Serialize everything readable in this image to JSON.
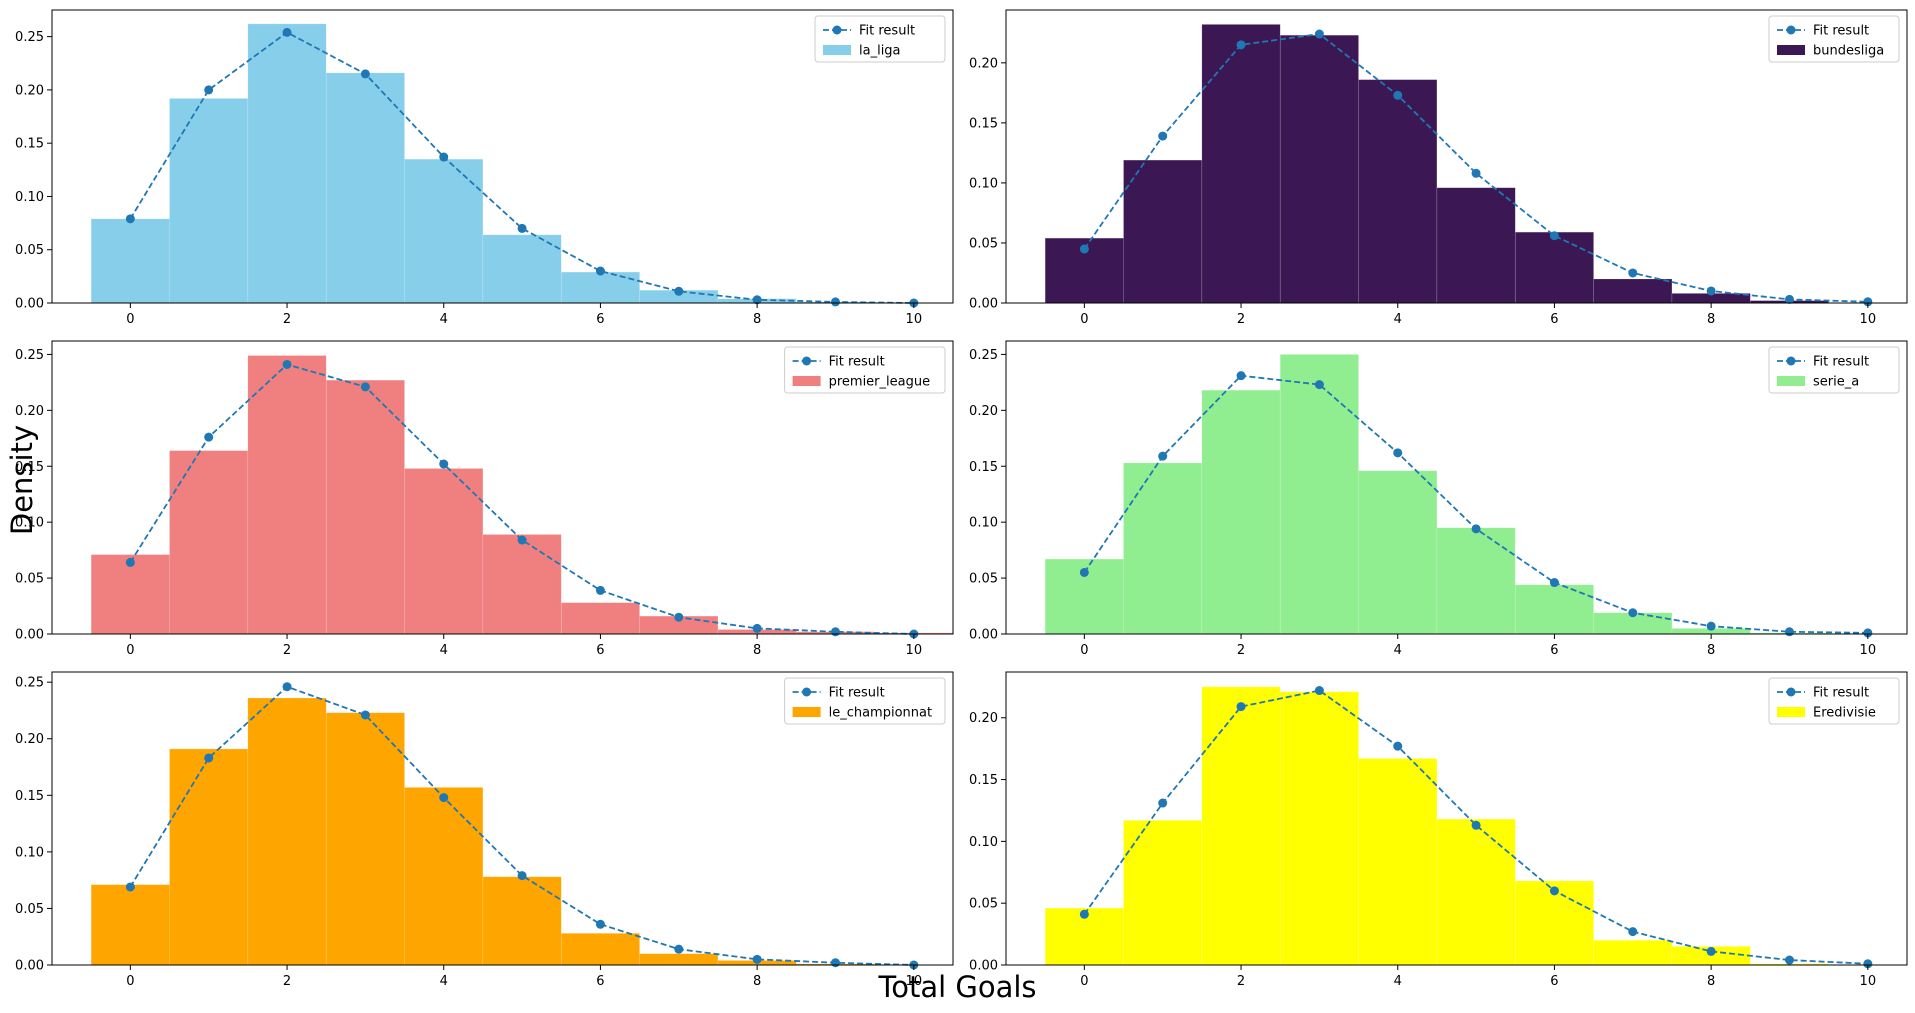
{
  "figure": {
    "xlabel": "Total Goals",
    "ylabel": "Density",
    "fit_color": "#1f77b4"
  },
  "chart_data": [
    {
      "type": "bar",
      "series": [
        {
          "name": "la_liga",
          "color": "#87ceeb",
          "x": [
            0,
            1,
            2,
            3,
            4,
            5,
            6,
            7,
            8,
            9,
            10
          ],
          "values": [
            0.079,
            0.192,
            0.262,
            0.216,
            0.135,
            0.064,
            0.029,
            0.012,
            0.004,
            0.001,
            0.0
          ]
        },
        {
          "name": "Fit result",
          "type": "line",
          "style": "dashed",
          "marker": "circle",
          "x": [
            0,
            1,
            2,
            3,
            4,
            5,
            6,
            7,
            8,
            9,
            10
          ],
          "values": [
            0.079,
            0.2,
            0.254,
            0.215,
            0.137,
            0.07,
            0.03,
            0.011,
            0.003,
            0.001,
            0.0
          ]
        }
      ],
      "xlim": [
        -1,
        10.5
      ],
      "ylim": [
        0,
        0.275
      ],
      "xticks": [
        0,
        2,
        4,
        6,
        8,
        10
      ],
      "yticks": [
        0.0,
        0.05,
        0.1,
        0.15,
        0.2,
        0.25
      ],
      "legend": [
        "Fit result",
        "la_liga"
      ],
      "legend_loc": "upper right"
    },
    {
      "type": "bar",
      "series": [
        {
          "name": "bundesliga",
          "color": "#3b1854",
          "x": [
            0,
            1,
            2,
            3,
            4,
            5,
            6,
            7,
            8,
            9,
            10
          ],
          "values": [
            0.054,
            0.119,
            0.232,
            0.223,
            0.186,
            0.096,
            0.059,
            0.02,
            0.008,
            0.002,
            0.0
          ]
        },
        {
          "name": "Fit result",
          "type": "line",
          "style": "dashed",
          "marker": "circle",
          "x": [
            0,
            1,
            2,
            3,
            4,
            5,
            6,
            7,
            8,
            9,
            10
          ],
          "values": [
            0.045,
            0.139,
            0.215,
            0.224,
            0.173,
            0.108,
            0.056,
            0.025,
            0.01,
            0.003,
            0.001
          ]
        }
      ],
      "xlim": [
        -1,
        10.5
      ],
      "ylim": [
        0,
        0.244
      ],
      "xticks": [
        0,
        2,
        4,
        6,
        8,
        10
      ],
      "yticks": [
        0.0,
        0.05,
        0.1,
        0.15,
        0.2
      ],
      "legend": [
        "Fit result",
        "bundesliga"
      ],
      "legend_loc": "upper right"
    },
    {
      "type": "bar",
      "series": [
        {
          "name": "premier_league",
          "color": "#f08080",
          "x": [
            0,
            1,
            2,
            3,
            4,
            5,
            6,
            7,
            8,
            9,
            10
          ],
          "values": [
            0.071,
            0.164,
            0.249,
            0.227,
            0.148,
            0.089,
            0.028,
            0.016,
            0.004,
            0.002,
            0.001
          ]
        },
        {
          "name": "Fit result",
          "type": "line",
          "style": "dashed",
          "marker": "circle",
          "x": [
            0,
            1,
            2,
            3,
            4,
            5,
            6,
            7,
            8,
            9,
            10
          ],
          "values": [
            0.064,
            0.176,
            0.241,
            0.221,
            0.152,
            0.084,
            0.039,
            0.015,
            0.005,
            0.002,
            0.0
          ]
        }
      ],
      "xlim": [
        -1,
        10.5
      ],
      "ylim": [
        0,
        0.262
      ],
      "xticks": [
        0,
        2,
        4,
        6,
        8,
        10
      ],
      "yticks": [
        0.0,
        0.05,
        0.1,
        0.15,
        0.2,
        0.25
      ],
      "legend": [
        "Fit result",
        "premier_league"
      ],
      "legend_loc": "upper right"
    },
    {
      "type": "bar",
      "series": [
        {
          "name": "serie_a",
          "color": "#90ee90",
          "x": [
            0,
            1,
            2,
            3,
            4,
            5,
            6,
            7,
            8,
            9,
            10
          ],
          "values": [
            0.067,
            0.153,
            0.218,
            0.25,
            0.146,
            0.095,
            0.044,
            0.019,
            0.005,
            0.001,
            0.0
          ]
        },
        {
          "name": "Fit result",
          "type": "line",
          "style": "dashed",
          "marker": "circle",
          "x": [
            0,
            1,
            2,
            3,
            4,
            5,
            6,
            7,
            8,
            9,
            10
          ],
          "values": [
            0.055,
            0.159,
            0.231,
            0.223,
            0.162,
            0.094,
            0.046,
            0.019,
            0.007,
            0.002,
            0.001
          ]
        }
      ],
      "xlim": [
        -1,
        10.5
      ],
      "ylim": [
        0,
        0.262
      ],
      "xticks": [
        0,
        2,
        4,
        6,
        8,
        10
      ],
      "yticks": [
        0.0,
        0.05,
        0.1,
        0.15,
        0.2,
        0.25
      ],
      "legend": [
        "Fit result",
        "serie_a"
      ],
      "legend_loc": "upper right"
    },
    {
      "type": "bar",
      "series": [
        {
          "name": "le_championnat",
          "color": "#ffa500",
          "x": [
            0,
            1,
            2,
            3,
            4,
            5,
            6,
            7,
            8,
            9,
            10
          ],
          "values": [
            0.071,
            0.191,
            0.236,
            0.223,
            0.157,
            0.078,
            0.028,
            0.01,
            0.004,
            0.001,
            0.0
          ]
        },
        {
          "name": "Fit result",
          "type": "line",
          "style": "dashed",
          "marker": "circle",
          "x": [
            0,
            1,
            2,
            3,
            4,
            5,
            6,
            7,
            8,
            9,
            10
          ],
          "values": [
            0.069,
            0.183,
            0.246,
            0.221,
            0.148,
            0.079,
            0.036,
            0.014,
            0.005,
            0.002,
            0.0
          ]
        }
      ],
      "xlim": [
        -1,
        10.5
      ],
      "ylim": [
        0,
        0.259
      ],
      "xticks": [
        0,
        2,
        4,
        6,
        8,
        10
      ],
      "yticks": [
        0.0,
        0.05,
        0.1,
        0.15,
        0.2,
        0.25
      ],
      "legend": [
        "Fit result",
        "le_championnat"
      ],
      "legend_loc": "upper right"
    },
    {
      "type": "bar",
      "series": [
        {
          "name": "Eredivisie",
          "color": "#ffff00",
          "x": [
            0,
            1,
            2,
            3,
            4,
            5,
            6,
            7,
            8,
            9,
            10
          ],
          "values": [
            0.046,
            0.117,
            0.225,
            0.221,
            0.167,
            0.118,
            0.068,
            0.02,
            0.015,
            0.001,
            0.0
          ]
        },
        {
          "name": "Fit result",
          "type": "line",
          "style": "dashed",
          "marker": "circle",
          "x": [
            0,
            1,
            2,
            3,
            4,
            5,
            6,
            7,
            8,
            9,
            10
          ],
          "values": [
            0.041,
            0.131,
            0.209,
            0.222,
            0.177,
            0.113,
            0.06,
            0.027,
            0.011,
            0.004,
            0.001
          ]
        }
      ],
      "xlim": [
        -1,
        10.5
      ],
      "ylim": [
        0,
        0.237
      ],
      "xticks": [
        0,
        2,
        4,
        6,
        8,
        10
      ],
      "yticks": [
        0.0,
        0.05,
        0.1,
        0.15,
        0.2
      ],
      "legend": [
        "Fit result",
        "Eredivisie"
      ],
      "legend_loc": "upper right"
    }
  ]
}
